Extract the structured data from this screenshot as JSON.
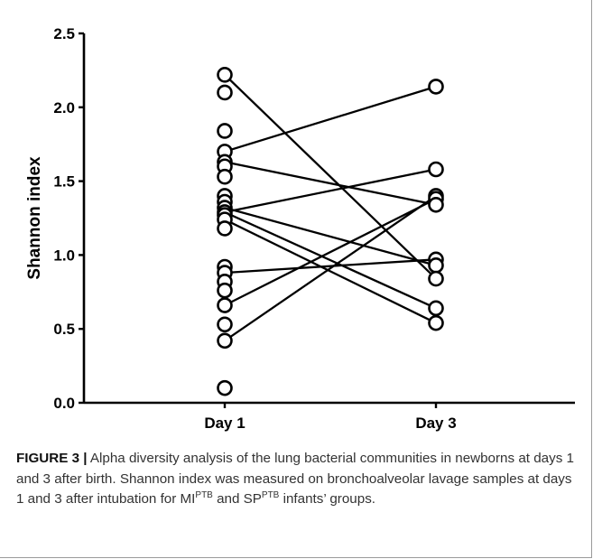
{
  "chart_data": {
    "type": "scatter",
    "title": "",
    "xlabel": "",
    "ylabel": "Shannon index",
    "categories": [
      "Day 1",
      "Day 3"
    ],
    "ylim": [
      0,
      2.5
    ],
    "yticks": [
      "0.0",
      "0.5",
      "1.0",
      "1.5",
      "2.0",
      "2.5"
    ],
    "grid": false,
    "points": [
      {
        "x": "Day 1",
        "y": 2.22
      },
      {
        "x": "Day 1",
        "y": 2.1
      },
      {
        "x": "Day 1",
        "y": 1.84
      },
      {
        "x": "Day 1",
        "y": 1.7
      },
      {
        "x": "Day 1",
        "y": 1.63
      },
      {
        "x": "Day 1",
        "y": 1.6
      },
      {
        "x": "Day 1",
        "y": 1.53
      },
      {
        "x": "Day 1",
        "y": 1.4
      },
      {
        "x": "Day 1",
        "y": 1.36
      },
      {
        "x": "Day 1",
        "y": 1.32
      },
      {
        "x": "Day 1",
        "y": 1.29
      },
      {
        "x": "Day 1",
        "y": 1.27
      },
      {
        "x": "Day 1",
        "y": 1.24
      },
      {
        "x": "Day 1",
        "y": 1.18
      },
      {
        "x": "Day 1",
        "y": 0.92
      },
      {
        "x": "Day 1",
        "y": 0.88
      },
      {
        "x": "Day 1",
        "y": 0.82
      },
      {
        "x": "Day 1",
        "y": 0.76
      },
      {
        "x": "Day 1",
        "y": 0.66
      },
      {
        "x": "Day 1",
        "y": 0.53
      },
      {
        "x": "Day 1",
        "y": 0.42
      },
      {
        "x": "Day 1",
        "y": 0.1
      },
      {
        "x": "Day 3",
        "y": 2.14
      },
      {
        "x": "Day 3",
        "y": 1.58
      },
      {
        "x": "Day 3",
        "y": 1.4
      },
      {
        "x": "Day 3",
        "y": 1.38
      },
      {
        "x": "Day 3",
        "y": 1.34
      },
      {
        "x": "Day 3",
        "y": 0.97
      },
      {
        "x": "Day 3",
        "y": 0.93
      },
      {
        "x": "Day 3",
        "y": 0.84
      },
      {
        "x": "Day 3",
        "y": 0.64
      },
      {
        "x": "Day 3",
        "y": 0.54
      }
    ],
    "pairs": [
      [
        2.22,
        0.84
      ],
      [
        1.7,
        2.14
      ],
      [
        1.63,
        1.34
      ],
      [
        1.29,
        1.58
      ],
      [
        1.32,
        0.93
      ],
      [
        1.29,
        0.64
      ],
      [
        1.24,
        0.54
      ],
      [
        0.88,
        0.97
      ],
      [
        0.66,
        1.38
      ],
      [
        0.42,
        1.4
      ]
    ],
    "marker_color": "#000000"
  },
  "caption": {
    "label": "FIGURE 3 |",
    "text_1": " Alpha diversity analysis of the lung bacterial communities in newborns at days 1 and 3 after birth. Shannon index was measured on bronchoalveolar lavage samples at days 1 and 3 after intubation for MI",
    "sup_1": "PTB",
    "text_2": " and SP",
    "sup_2": "PTB",
    "text_3": " infants’ groups."
  }
}
